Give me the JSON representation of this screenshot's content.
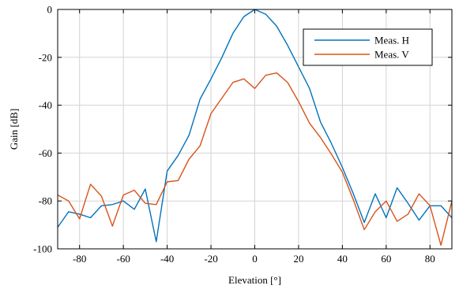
{
  "chart_data": {
    "type": "line",
    "title": "",
    "xlabel": "Elevation [°]",
    "ylabel": "Gain [dB]",
    "xlim": [
      -90,
      90
    ],
    "ylim": [
      -100,
      0
    ],
    "xticks": [
      -80,
      -60,
      -40,
      -20,
      0,
      20,
      40,
      60,
      80
    ],
    "yticks": [
      0,
      -20,
      -40,
      -60,
      -80,
      -100
    ],
    "grid": true,
    "legend_position": "top-right",
    "x": [
      -90,
      -85,
      -80,
      -75,
      -70,
      -65,
      -60,
      -55,
      -50,
      -45,
      -40,
      -35,
      -30,
      -25,
      -20,
      -15,
      -10,
      -5,
      0,
      5,
      10,
      15,
      20,
      25,
      30,
      35,
      40,
      45,
      50,
      55,
      60,
      65,
      70,
      75,
      80,
      85,
      90
    ],
    "series": [
      {
        "name": "Meas. H",
        "color": "#0072BD",
        "values": [
          -91,
          -84.5,
          -85.5,
          -87,
          -82,
          -81.5,
          -80,
          -83.5,
          -75,
          -97,
          -67.5,
          -61,
          -52.5,
          -37.5,
          -29,
          -20,
          -10,
          -3,
          0,
          -2,
          -7,
          -15,
          -24,
          -33,
          -47,
          -56,
          -66,
          -77,
          -89,
          -77,
          -87,
          -74.5,
          -81,
          -88,
          -82,
          -82,
          -87
        ]
      },
      {
        "name": "Meas. V",
        "color": "#D95319",
        "values": [
          -77.5,
          -80,
          -87.5,
          -73,
          -78,
          -90.5,
          -77.5,
          -75.5,
          -81,
          -81.5,
          -72,
          -71.5,
          -62.5,
          -57,
          -43.5,
          -37,
          -30.5,
          -29,
          -33,
          -27.5,
          -26.5,
          -30.5,
          -38.5,
          -47.5,
          -53.5,
          -60.5,
          -68,
          -79.5,
          -92,
          -84.5,
          -80,
          -88.5,
          -85.5,
          -77,
          -82,
          -98.5,
          -80
        ]
      }
    ]
  }
}
